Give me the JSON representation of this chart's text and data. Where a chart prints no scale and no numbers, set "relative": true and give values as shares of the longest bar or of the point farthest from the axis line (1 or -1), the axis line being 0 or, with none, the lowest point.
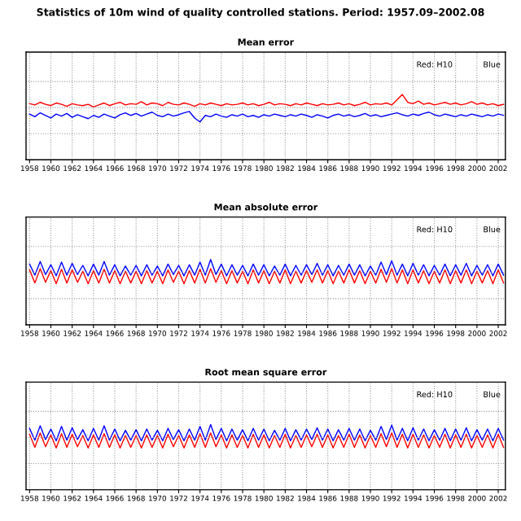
{
  "chart_data": [
    {
      "type": "line",
      "relative": true,
      "title": "Statistics of 10m wind of quality controlled stations. Period: 1957.09–2002.08",
      "subtitle": "Mean error",
      "annotations": [
        "Red: H10",
        "Blue"
      ],
      "grid": true,
      "xlim": [
        1957.67,
        2002.67
      ],
      "xticks": [
        1958,
        1960,
        1962,
        1964,
        1966,
        1968,
        1970,
        1972,
        1974,
        1976,
        1978,
        1980,
        1982,
        1984,
        1986,
        1988,
        1990,
        1992,
        1994,
        1996,
        1998,
        2000,
        2002
      ],
      "x": [
        1958.0,
        1958.5,
        1959.0,
        1959.5,
        1960.0,
        1960.5,
        1961.0,
        1961.5,
        1962.0,
        1962.5,
        1963.0,
        1963.5,
        1964.0,
        1964.5,
        1965.0,
        1965.5,
        1966.0,
        1966.5,
        1967.0,
        1967.5,
        1968.0,
        1968.5,
        1969.0,
        1969.5,
        1970.0,
        1970.5,
        1971.0,
        1971.5,
        1972.0,
        1972.5,
        1973.0,
        1973.5,
        1974.0,
        1974.5,
        1975.0,
        1975.5,
        1976.0,
        1976.5,
        1977.0,
        1977.5,
        1978.0,
        1978.5,
        1979.0,
        1979.5,
        1980.0,
        1980.5,
        1981.0,
        1981.5,
        1982.0,
        1982.5,
        1983.0,
        1983.5,
        1984.0,
        1984.5,
        1985.0,
        1985.5,
        1986.0,
        1986.5,
        1987.0,
        1987.5,
        1988.0,
        1988.5,
        1989.0,
        1989.5,
        1990.0,
        1990.5,
        1991.0,
        1991.5,
        1992.0,
        1992.5,
        1993.0,
        1993.5,
        1994.0,
        1994.5,
        1995.0,
        1995.5,
        1996.0,
        1996.5,
        1997.0,
        1997.5,
        1998.0,
        1998.5,
        1999.0,
        1999.5,
        2000.0,
        2000.5,
        2001.0,
        2001.5,
        2002.0,
        2002.5
      ],
      "series": [
        {
          "color": "#ff0000",
          "values": [
            0.86,
            0.84,
            0.88,
            0.85,
            0.83,
            0.87,
            0.85,
            0.82,
            0.86,
            0.84,
            0.83,
            0.85,
            0.81,
            0.84,
            0.87,
            0.83,
            0.86,
            0.88,
            0.84,
            0.86,
            0.85,
            0.89,
            0.84,
            0.87,
            0.86,
            0.83,
            0.88,
            0.85,
            0.84,
            0.87,
            0.85,
            0.82,
            0.86,
            0.84,
            0.87,
            0.85,
            0.83,
            0.86,
            0.84,
            0.85,
            0.87,
            0.84,
            0.86,
            0.83,
            0.85,
            0.88,
            0.84,
            0.86,
            0.85,
            0.83,
            0.86,
            0.84,
            0.87,
            0.85,
            0.83,
            0.86,
            0.84,
            0.85,
            0.87,
            0.84,
            0.86,
            0.83,
            0.85,
            0.88,
            0.84,
            0.86,
            0.85,
            0.87,
            0.84,
            0.92,
            1.0,
            0.88,
            0.86,
            0.9,
            0.85,
            0.87,
            0.84,
            0.86,
            0.88,
            0.85,
            0.87,
            0.84,
            0.86,
            0.89,
            0.85,
            0.87,
            0.84,
            0.86,
            0.83,
            0.85
          ]
        },
        {
          "color": "#0000ff",
          "values": [
            0.7,
            0.66,
            0.72,
            0.68,
            0.64,
            0.7,
            0.67,
            0.71,
            0.65,
            0.69,
            0.66,
            0.63,
            0.68,
            0.65,
            0.7,
            0.67,
            0.64,
            0.69,
            0.72,
            0.68,
            0.71,
            0.67,
            0.7,
            0.73,
            0.68,
            0.66,
            0.7,
            0.67,
            0.69,
            0.72,
            0.74,
            0.64,
            0.58,
            0.68,
            0.66,
            0.7,
            0.67,
            0.65,
            0.69,
            0.67,
            0.7,
            0.66,
            0.68,
            0.65,
            0.69,
            0.67,
            0.7,
            0.68,
            0.66,
            0.69,
            0.67,
            0.7,
            0.68,
            0.65,
            0.69,
            0.67,
            0.64,
            0.68,
            0.7,
            0.67,
            0.69,
            0.66,
            0.68,
            0.71,
            0.67,
            0.69,
            0.66,
            0.68,
            0.7,
            0.72,
            0.69,
            0.67,
            0.7,
            0.68,
            0.71,
            0.73,
            0.69,
            0.67,
            0.7,
            0.68,
            0.66,
            0.69,
            0.67,
            0.7,
            0.68,
            0.66,
            0.69,
            0.67,
            0.7,
            0.68
          ]
        }
      ]
    },
    {
      "type": "line",
      "relative": true,
      "title": "Mean absolute error",
      "annotations": [
        "Red: H10",
        "Blue"
      ],
      "grid": true,
      "xlim": [
        1957.67,
        2002.67
      ],
      "xticks": [
        1958,
        1960,
        1962,
        1964,
        1966,
        1968,
        1970,
        1972,
        1974,
        1976,
        1978,
        1980,
        1982,
        1984,
        1986,
        1988,
        1990,
        1992,
        1994,
        1996,
        1998,
        2000,
        2002
      ],
      "x": [
        1958.0,
        1958.5,
        1959.0,
        1959.5,
        1960.0,
        1960.5,
        1961.0,
        1961.5,
        1962.0,
        1962.5,
        1963.0,
        1963.5,
        1964.0,
        1964.5,
        1965.0,
        1965.5,
        1966.0,
        1966.5,
        1967.0,
        1967.5,
        1968.0,
        1968.5,
        1969.0,
        1969.5,
        1970.0,
        1970.5,
        1971.0,
        1971.5,
        1972.0,
        1972.5,
        1973.0,
        1973.5,
        1974.0,
        1974.5,
        1975.0,
        1975.5,
        1976.0,
        1976.5,
        1977.0,
        1977.5,
        1978.0,
        1978.5,
        1979.0,
        1979.5,
        1980.0,
        1980.5,
        1981.0,
        1981.5,
        1982.0,
        1982.5,
        1983.0,
        1983.5,
        1984.0,
        1984.5,
        1985.0,
        1985.5,
        1986.0,
        1986.5,
        1987.0,
        1987.5,
        1988.0,
        1988.5,
        1989.0,
        1989.5,
        1990.0,
        1990.5,
        1991.0,
        1991.5,
        1992.0,
        1992.5,
        1993.0,
        1993.5,
        1994.0,
        1994.5,
        1995.0,
        1995.5,
        1996.0,
        1996.5,
        1997.0,
        1997.5,
        1998.0,
        1998.5,
        1999.0,
        1999.5,
        2000.0,
        2000.5,
        2001.0,
        2001.5,
        2002.0,
        2002.5
      ],
      "series": [
        {
          "color": "#ff0000",
          "values": [
            0.84,
            0.64,
            0.86,
            0.65,
            0.83,
            0.63,
            0.85,
            0.64,
            0.84,
            0.65,
            0.82,
            0.63,
            0.83,
            0.64,
            0.85,
            0.64,
            0.83,
            0.63,
            0.82,
            0.64,
            0.82,
            0.63,
            0.83,
            0.64,
            0.82,
            0.63,
            0.84,
            0.65,
            0.82,
            0.63,
            0.83,
            0.64,
            0.85,
            0.64,
            0.86,
            0.65,
            0.83,
            0.63,
            0.83,
            0.64,
            0.82,
            0.63,
            0.84,
            0.64,
            0.83,
            0.63,
            0.82,
            0.64,
            0.84,
            0.63,
            0.82,
            0.64,
            0.83,
            0.65,
            0.84,
            0.64,
            0.83,
            0.63,
            0.82,
            0.64,
            0.84,
            0.64,
            0.83,
            0.63,
            0.82,
            0.64,
            0.85,
            0.65,
            0.86,
            0.64,
            0.84,
            0.63,
            0.84,
            0.64,
            0.83,
            0.63,
            0.82,
            0.64,
            0.84,
            0.63,
            0.83,
            0.64,
            0.84,
            0.63,
            0.82,
            0.64,
            0.83,
            0.63,
            0.84,
            0.64
          ]
        },
        {
          "color": "#0000ff",
          "values": [
            0.93,
            0.76,
            0.97,
            0.77,
            0.92,
            0.75,
            0.96,
            0.76,
            0.94,
            0.77,
            0.91,
            0.75,
            0.93,
            0.76,
            0.97,
            0.76,
            0.92,
            0.75,
            0.9,
            0.76,
            0.91,
            0.75,
            0.92,
            0.76,
            0.9,
            0.75,
            0.93,
            0.77,
            0.91,
            0.75,
            0.92,
            0.76,
            0.96,
            0.76,
            1.0,
            0.77,
            0.93,
            0.75,
            0.92,
            0.76,
            0.91,
            0.75,
            0.93,
            0.76,
            0.92,
            0.75,
            0.9,
            0.76,
            0.93,
            0.75,
            0.91,
            0.76,
            0.92,
            0.77,
            0.94,
            0.76,
            0.92,
            0.75,
            0.91,
            0.76,
            0.93,
            0.76,
            0.92,
            0.75,
            0.9,
            0.76,
            0.96,
            0.77,
            0.98,
            0.76,
            0.93,
            0.75,
            0.94,
            0.76,
            0.92,
            0.75,
            0.91,
            0.76,
            0.93,
            0.75,
            0.92,
            0.76,
            0.94,
            0.75,
            0.91,
            0.76,
            0.92,
            0.75,
            0.93,
            0.76
          ]
        }
      ]
    },
    {
      "type": "line",
      "relative": true,
      "title": "Root mean square error",
      "annotations": [
        "Red: H10",
        "Blue"
      ],
      "grid": true,
      "xlim": [
        1957.67,
        2002.67
      ],
      "xticks": [
        1958,
        1960,
        1962,
        1964,
        1966,
        1968,
        1970,
        1972,
        1974,
        1976,
        1978,
        1980,
        1982,
        1984,
        1986,
        1988,
        1990,
        1992,
        1994,
        1996,
        1998,
        2000,
        2002
      ],
      "x": [
        1958.0,
        1958.5,
        1959.0,
        1959.5,
        1960.0,
        1960.5,
        1961.0,
        1961.5,
        1962.0,
        1962.5,
        1963.0,
        1963.5,
        1964.0,
        1964.5,
        1965.0,
        1965.5,
        1966.0,
        1966.5,
        1967.0,
        1967.5,
        1968.0,
        1968.5,
        1969.0,
        1969.5,
        1970.0,
        1970.5,
        1971.0,
        1971.5,
        1972.0,
        1972.5,
        1973.0,
        1973.5,
        1974.0,
        1974.5,
        1975.0,
        1975.5,
        1976.0,
        1976.5,
        1977.0,
        1977.5,
        1978.0,
        1978.5,
        1979.0,
        1979.5,
        1980.0,
        1980.5,
        1981.0,
        1981.5,
        1982.0,
        1982.5,
        1983.0,
        1983.5,
        1984.0,
        1984.5,
        1985.0,
        1985.5,
        1986.0,
        1986.5,
        1987.0,
        1987.5,
        1988.0,
        1988.5,
        1989.0,
        1989.5,
        1990.0,
        1990.5,
        1991.0,
        1991.5,
        1992.0,
        1992.5,
        1993.0,
        1993.5,
        1994.0,
        1994.5,
        1995.0,
        1995.5,
        1996.0,
        1996.5,
        1997.0,
        1997.5,
        1998.0,
        1998.5,
        1999.0,
        1999.5,
        2000.0,
        2000.5,
        2001.0,
        2001.5,
        2002.0,
        2002.5
      ],
      "series": [
        {
          "color": "#ff0000",
          "values": [
            0.85,
            0.65,
            0.87,
            0.66,
            0.84,
            0.64,
            0.86,
            0.65,
            0.85,
            0.66,
            0.83,
            0.64,
            0.84,
            0.65,
            0.86,
            0.65,
            0.84,
            0.64,
            0.83,
            0.65,
            0.83,
            0.64,
            0.84,
            0.65,
            0.83,
            0.64,
            0.85,
            0.66,
            0.83,
            0.64,
            0.84,
            0.65,
            0.86,
            0.65,
            0.87,
            0.66,
            0.84,
            0.64,
            0.84,
            0.65,
            0.83,
            0.64,
            0.85,
            0.65,
            0.84,
            0.64,
            0.83,
            0.65,
            0.85,
            0.64,
            0.83,
            0.65,
            0.84,
            0.66,
            0.85,
            0.65,
            0.84,
            0.64,
            0.83,
            0.65,
            0.85,
            0.65,
            0.84,
            0.64,
            0.83,
            0.65,
            0.86,
            0.66,
            0.87,
            0.65,
            0.85,
            0.64,
            0.85,
            0.65,
            0.84,
            0.64,
            0.83,
            0.65,
            0.85,
            0.64,
            0.84,
            0.65,
            0.85,
            0.64,
            0.83,
            0.65,
            0.84,
            0.64,
            0.85,
            0.65
          ]
        },
        {
          "color": "#0000ff",
          "values": [
            0.94,
            0.76,
            0.98,
            0.77,
            0.93,
            0.75,
            0.97,
            0.76,
            0.95,
            0.77,
            0.92,
            0.75,
            0.94,
            0.76,
            0.98,
            0.76,
            0.93,
            0.75,
            0.91,
            0.76,
            0.92,
            0.75,
            0.93,
            0.76,
            0.91,
            0.75,
            0.94,
            0.77,
            0.92,
            0.75,
            0.93,
            0.76,
            0.97,
            0.76,
            1.0,
            0.77,
            0.94,
            0.75,
            0.93,
            0.76,
            0.92,
            0.75,
            0.94,
            0.76,
            0.93,
            0.75,
            0.91,
            0.76,
            0.94,
            0.75,
            0.92,
            0.76,
            0.93,
            0.77,
            0.95,
            0.76,
            0.93,
            0.75,
            0.92,
            0.76,
            0.94,
            0.76,
            0.93,
            0.75,
            0.91,
            0.76,
            0.97,
            0.77,
            0.99,
            0.76,
            0.94,
            0.75,
            0.95,
            0.76,
            0.93,
            0.75,
            0.92,
            0.76,
            0.94,
            0.75,
            0.93,
            0.76,
            0.95,
            0.75,
            0.92,
            0.76,
            0.93,
            0.75,
            0.94,
            0.76
          ]
        }
      ]
    }
  ]
}
